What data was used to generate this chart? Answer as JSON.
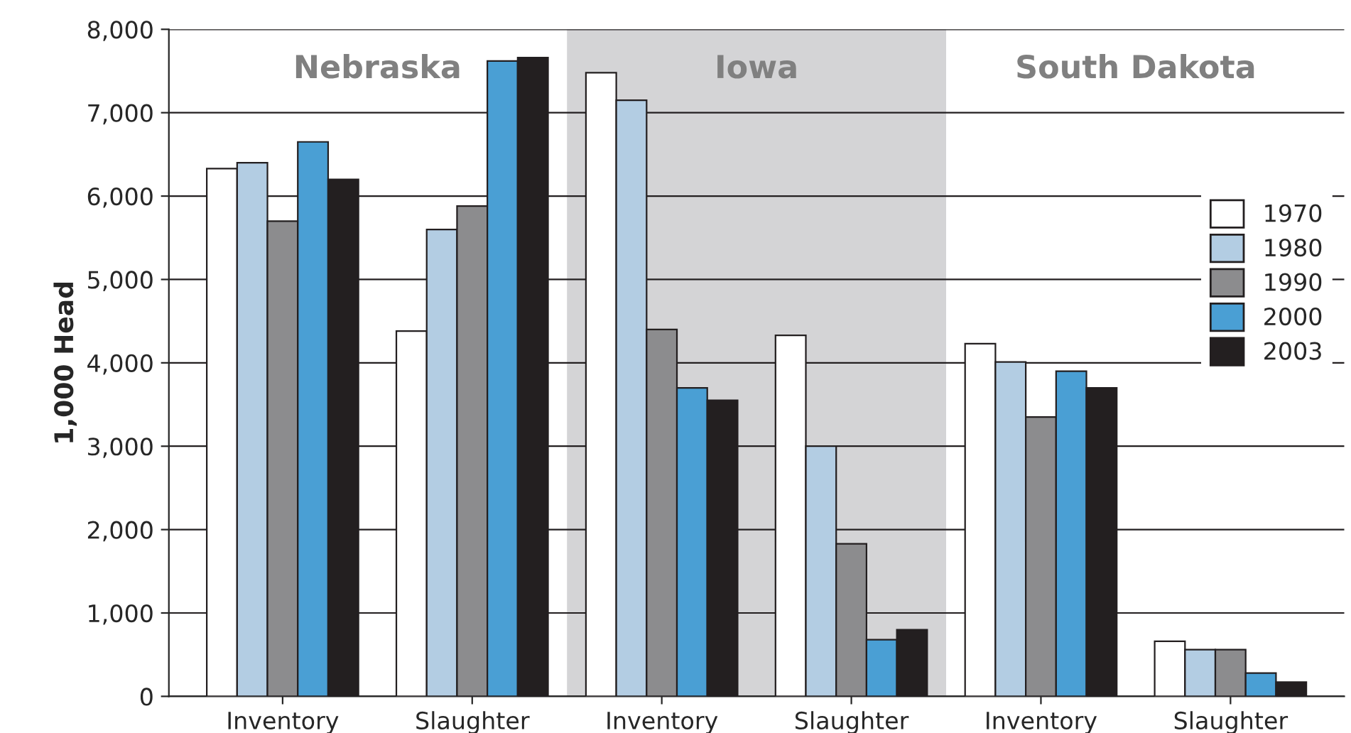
{
  "chart_data": {
    "type": "bar",
    "ylabel": "1,000 Head",
    "categories": [
      "Inventory",
      "Slaughter",
      "Inventory",
      "Slaughter",
      "Inventory",
      "Slaughter"
    ],
    "series": [
      {
        "name": "1970",
        "color": "#ffffff",
        "values": [
          6330,
          4380,
          7480,
          4330,
          4230,
          660
        ]
      },
      {
        "name": "1980",
        "color": "#b3cde3",
        "values": [
          6400,
          5600,
          7150,
          3000,
          4010,
          560
        ]
      },
      {
        "name": "1990",
        "color": "#8c8c8e",
        "values": [
          5700,
          5880,
          4400,
          1830,
          3350,
          560
        ]
      },
      {
        "name": "2000",
        "color": "#4a9fd4",
        "values": [
          6650,
          7620,
          3700,
          680,
          3900,
          280
        ]
      },
      {
        "name": "2003",
        "color": "#231f20",
        "values": [
          6200,
          7660,
          3550,
          800,
          3700,
          170
        ]
      }
    ],
    "annotations": [
      "Nebraska",
      "Iowa",
      "South Dakota"
    ],
    "ylim": [
      0,
      8000
    ],
    "yticks": [
      {
        "value": 0,
        "label": "0"
      },
      {
        "value": 1000,
        "label": "1,000"
      },
      {
        "value": 2000,
        "label": "2,000"
      },
      {
        "value": 3000,
        "label": "3,000"
      },
      {
        "value": 4000,
        "label": "4,000"
      },
      {
        "value": 5000,
        "label": "5,000"
      },
      {
        "value": 6000,
        "label": "6,000"
      },
      {
        "value": 7000,
        "label": "7,000"
      },
      {
        "value": 8000,
        "label": "8,000"
      }
    ],
    "grid": "y",
    "legend": "right"
  }
}
